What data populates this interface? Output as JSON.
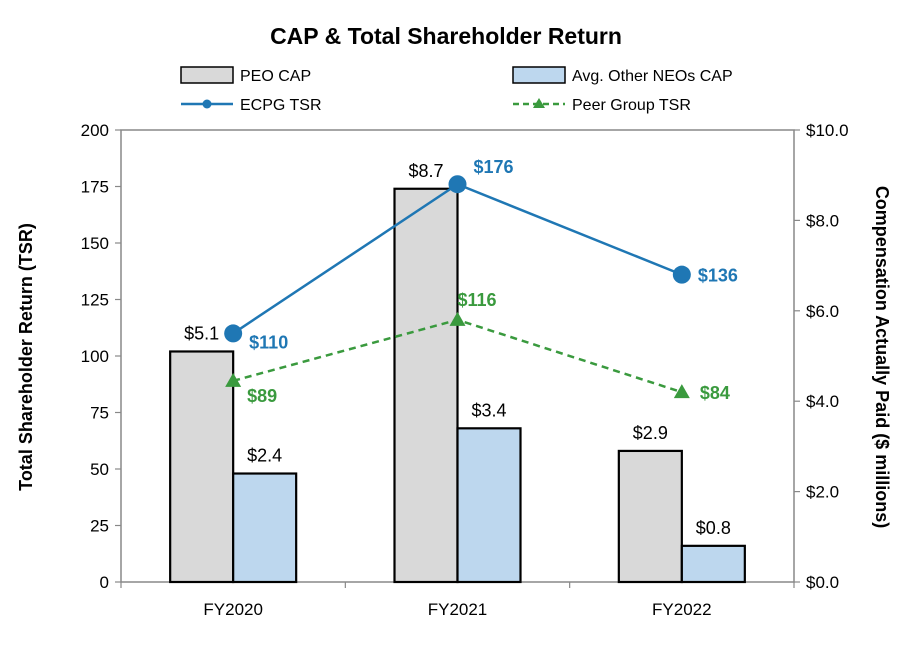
{
  "chart_data": {
    "type": "bar",
    "title": "CAP & Total Shareholder Return",
    "categories": [
      "FY2020",
      "FY2021",
      "FY2022"
    ],
    "bar_series": [
      {
        "name": "PEO CAP",
        "values": [
          5.1,
          8.7,
          2.9
        ],
        "labels": [
          "$5.1",
          "$8.7",
          "$2.9"
        ],
        "color": "#d9d9d9"
      },
      {
        "name": "Avg. Other NEOs CAP",
        "values": [
          2.4,
          3.4,
          0.8
        ],
        "labels": [
          "$2.4",
          "$3.4",
          "$0.8"
        ],
        "color": "#bdd7ee"
      }
    ],
    "line_series": [
      {
        "name": "ECPG TSR",
        "values": [
          110,
          176,
          136
        ],
        "labels": [
          "$110",
          "$176",
          "$136"
        ],
        "color": "#1f77b4",
        "marker": "circle",
        "style": "solid"
      },
      {
        "name": "Peer Group TSR",
        "values": [
          89,
          116,
          84
        ],
        "labels": [
          "$89",
          "$116",
          "$84"
        ],
        "color": "#3a9a3e",
        "marker": "triangle",
        "style": "dashed"
      }
    ],
    "y_left": {
      "label": "Total Shareholder Return (TSR)",
      "ylim": [
        0,
        200
      ],
      "ticks": [
        "0",
        "25",
        "50",
        "75",
        "100",
        "125",
        "150",
        "175",
        "200"
      ]
    },
    "y_right": {
      "label": "Compensation Actually Paid ($ millions)",
      "ylim": [
        0,
        10
      ],
      "ticks": [
        "$0.0",
        "$2.0",
        "$4.0",
        "$6.0",
        "$8.0",
        "$10.0"
      ]
    },
    "legend_position": "top",
    "grid": false
  }
}
